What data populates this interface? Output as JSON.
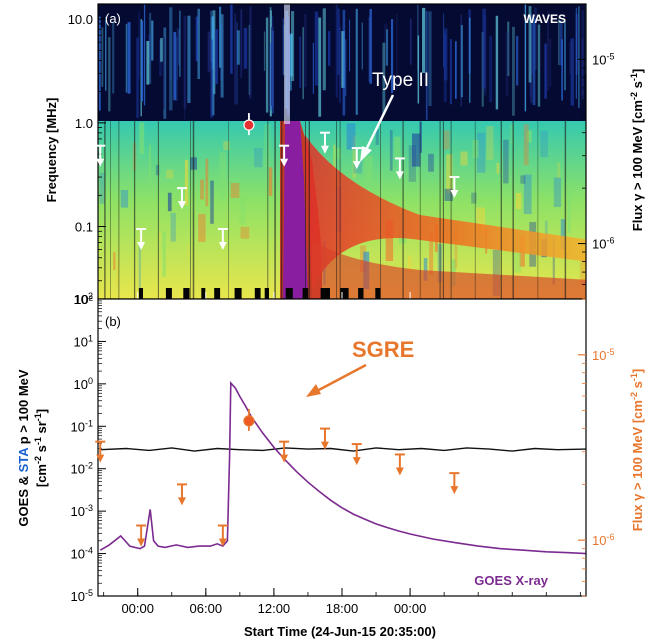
{
  "figure": {
    "colors": {
      "orange": "#e8772e",
      "purple": "#7b2a8f",
      "blue": "#1a5fd0",
      "black": "#000000"
    }
  },
  "panel_a": {
    "label": "(a)",
    "instrument": "WAVES",
    "annotation": "Type II",
    "ylabel": "Frequency [MHz]",
    "right_ylabel_parts": [
      "Flux γ > 100 MeV [cm",
      "-2",
      " s",
      "-1",
      "]"
    ],
    "yticks": [
      "10.0",
      "1.0",
      "0.1",
      "10²"
    ],
    "right_ticks": [
      {
        "base": "10",
        "exp": "-5"
      },
      {
        "base": "10",
        "exp": "-6"
      }
    ]
  },
  "panel_b": {
    "label": "(b)",
    "annotation": "SGRE",
    "xray_label": "GOES X-ray",
    "xlabel": "Start Time (24-Jun-15 20:35:00)",
    "xticks": [
      "00:00",
      "06:00",
      "12:00",
      "18:00",
      "00:00"
    ],
    "left_ylabel_line1": {
      "pre": "GOES & ",
      "blue": "STA",
      "post": " p > 100 MeV"
    },
    "left_ylabel_line2_parts": [
      "[cm",
      "-2",
      " s",
      "-1",
      " sr",
      "-1",
      "]"
    ],
    "right_ylabel_parts": [
      "Flux γ > 100 MeV [cm",
      "-2",
      " s",
      "-1",
      "]"
    ],
    "left_ticks": [
      {
        "base": "10",
        "exp": "2"
      },
      {
        "base": "10",
        "exp": "1"
      },
      {
        "base": "10",
        "exp": "0"
      },
      {
        "base": "10",
        "exp": "-1"
      },
      {
        "base": "10",
        "exp": "-2"
      },
      {
        "base": "10",
        "exp": "-3"
      },
      {
        "base": "10",
        "exp": "-4"
      },
      {
        "base": "10",
        "exp": "-5"
      }
    ],
    "right_ticks": [
      {
        "base": "10",
        "exp": "-5"
      },
      {
        "base": "10",
        "exp": "-6"
      }
    ]
  },
  "chart_data": [
    {
      "type": "heatmap",
      "title": "",
      "ylabel": "Frequency [MHz]",
      "y_scale": "log",
      "ylim": [
        0.02,
        14
      ],
      "right_axis": {
        "label": "Flux γ > 100 MeV [cm-2 s-1]",
        "scale": "log",
        "ylim": [
          5e-07,
          2e-05
        ]
      },
      "x_hours": [
        -3.5,
        39.5
      ],
      "gamma_upper_limits": {
        "x_hours": [
          -3.3,
          0.3,
          3.9,
          7.5,
          12.9,
          16.5,
          19.3,
          23.1,
          27.9
        ],
        "flux": [
          3.4e-06,
          1.2e-06,
          2e-06,
          1.2e-06,
          3.4e-06,
          4e-06,
          3.3e-06,
          2.9e-06,
          2.3e-06
        ]
      },
      "gamma_detection": {
        "x_hour": 9.8,
        "flux": 4.4e-06
      }
    },
    {
      "type": "line",
      "title": "",
      "xlabel": "Start Time (24-Jun-15 20:35:00)",
      "x_tick_labels": [
        "00:00",
        "06:00",
        "12:00",
        "18:00",
        "00:00"
      ],
      "x_tick_hours": [
        0,
        6,
        12,
        18,
        24
      ],
      "xlim_hours": [
        -3.5,
        39.5
      ],
      "left_axis": {
        "scale": "log",
        "ylim": [
          1e-05,
          100
        ]
      },
      "right_axis": {
        "scale": "log",
        "ylim": [
          5e-07,
          2e-05
        ]
      },
      "series": [
        {
          "name": "GOES X-ray",
          "axis": "left",
          "x_hours": [
            -3.3,
            -2.5,
            -1.5,
            -0.7,
            0.2,
            0.6,
            1.1,
            1.4,
            1.8,
            2.4,
            3.4,
            4.4,
            5.4,
            6.4,
            7.0,
            7.5,
            7.9,
            8.1,
            8.2,
            8.6,
            9.0,
            9.5,
            10.0,
            11.0,
            12.0,
            13.0,
            14.0,
            15.0,
            16.0,
            17.0,
            18.0,
            19.0,
            20.0,
            21.0,
            22.0,
            23.0,
            24.0,
            26.0,
            28.0,
            30.0,
            32.0,
            34.0,
            36.0,
            38.0,
            39.5
          ],
          "values": [
            0.00012,
            0.00016,
            0.00026,
            0.00015,
            0.00013,
            0.00015,
            0.0011,
            0.0002,
            0.00015,
            0.00014,
            0.00016,
            0.00014,
            0.00015,
            0.00015,
            0.00017,
            0.00015,
            0.0002,
            0.02,
            1.05,
            0.8,
            0.5,
            0.3,
            0.17,
            0.07,
            0.032,
            0.016,
            0.0085,
            0.0048,
            0.0029,
            0.0018,
            0.0012,
            0.00085,
            0.00065,
            0.0005,
            0.00041,
            0.00034,
            0.00029,
            0.00022,
            0.00018,
            0.00015,
            0.00013,
            0.00012,
            0.00011,
            0.000105,
            0.0001
          ]
        },
        {
          "name": "",
          "axis": "left",
          "x_hours": [
            -3.3,
            -1,
            1,
            3,
            5,
            7,
            9,
            11,
            13,
            15,
            17,
            19,
            21,
            23,
            25,
            27,
            29,
            31,
            33,
            35,
            37,
            39.5
          ],
          "values": [
            0.028,
            0.03,
            0.027,
            0.031,
            0.026,
            0.03,
            0.028,
            0.027,
            0.031,
            0.029,
            0.03,
            0.026,
            0.031,
            0.028,
            0.03,
            0.027,
            0.031,
            0.029,
            0.026,
            0.03,
            0.028,
            0.029
          ]
        }
      ],
      "gamma_upper_limits": {
        "x_hours": [
          -3.3,
          0.3,
          3.9,
          7.5,
          12.9,
          16.5,
          19.3,
          23.1,
          27.9
        ],
        "flux": [
          3.4e-06,
          1.2e-06,
          2e-06,
          1.2e-06,
          3.4e-06,
          4e-06,
          3.3e-06,
          2.9e-06,
          2.3e-06
        ]
      },
      "gamma_detection": {
        "x_hour": 9.8,
        "flux": 4.4e-06
      }
    }
  ]
}
